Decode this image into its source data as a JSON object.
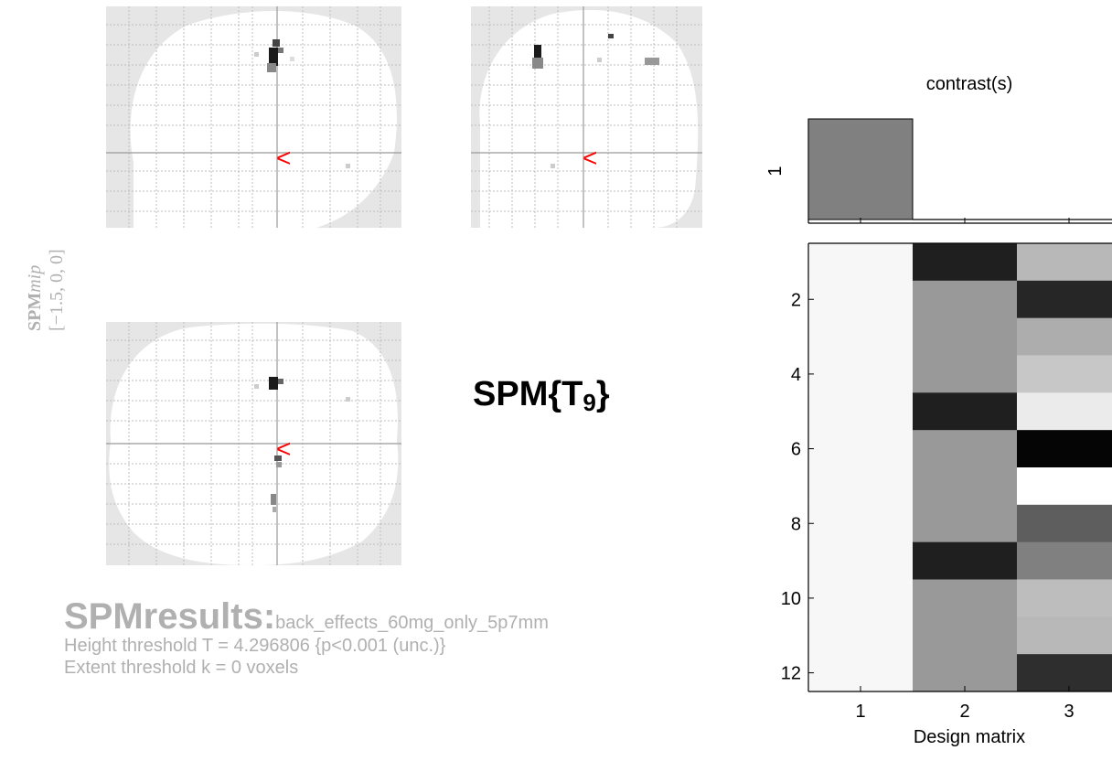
{
  "mip": {
    "vertical_label": "SPMmip",
    "vertical_label_italic_part": "mip",
    "vertical_label_bold_part": "SPM",
    "coords": "[−1.5, 0, 0]",
    "cursor_marker": "<",
    "cursor_color": "#ff0000"
  },
  "statistic": {
    "prefix": "SPM{T",
    "subscript": "9",
    "suffix": "}"
  },
  "results": {
    "title": "SPMresults:",
    "filename": "back_effects_60mg_only_5p7mm",
    "height_threshold": "Height threshold T = 4.296806  {p<0.001 (unc.)}",
    "extent_threshold": "Extent threshold k = 0 voxels"
  },
  "design_matrix": {
    "contrast_title": "contrast(s)",
    "contrast_row_label": "1",
    "contrast_weights": [
      1,
      0,
      0
    ],
    "xlabel": "Design matrix",
    "x_ticks": [
      "1",
      "2",
      "3"
    ],
    "y_ticks": [
      "2",
      "4",
      "6",
      "8",
      "10",
      "12"
    ],
    "columns": [
      [
        0.97,
        0.97,
        0.97,
        0.97,
        0.97,
        0.97,
        0.97,
        0.97,
        0.97,
        0.97,
        0.97,
        0.97
      ],
      [
        0.12,
        0.6,
        0.6,
        0.6,
        0.12,
        0.6,
        0.6,
        0.6,
        0.12,
        0.6,
        0.6,
        0.6
      ],
      [
        0.72,
        0.15,
        0.68,
        0.78,
        0.92,
        0.02,
        1.0,
        0.37,
        0.5,
        0.74,
        0.72,
        0.18
      ]
    ]
  }
}
